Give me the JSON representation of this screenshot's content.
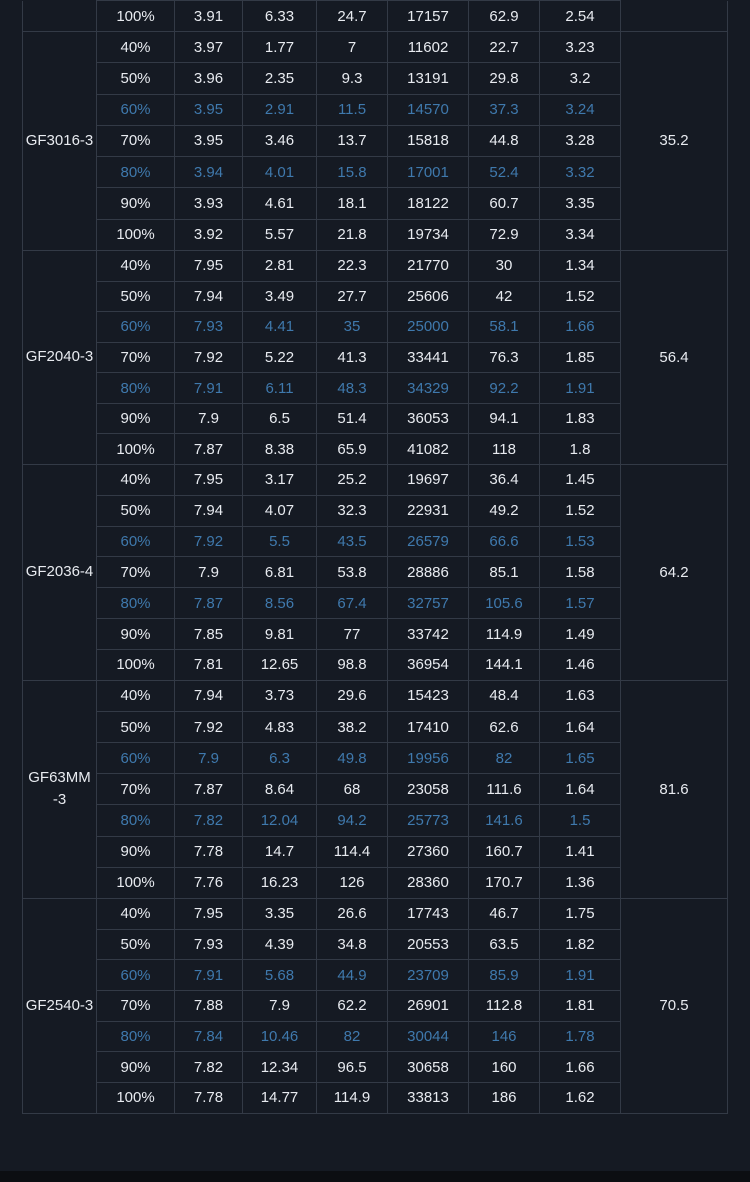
{
  "top_row": [
    "100%",
    "3.91",
    "6.33",
    "24.7",
    "17157",
    "62.9",
    "2.54"
  ],
  "groups": [
    {
      "model": "GF3016-3",
      "last": "35.2",
      "rows": [
        [
          "40%",
          "3.97",
          "1.77",
          "7",
          "11602",
          "22.7",
          "3.23"
        ],
        [
          "50%",
          "3.96",
          "2.35",
          "9.3",
          "13191",
          "29.8",
          "3.2"
        ],
        [
          "60%",
          "3.95",
          "2.91",
          "11.5",
          "14570",
          "37.3",
          "3.24"
        ],
        [
          "70%",
          "3.95",
          "3.46",
          "13.7",
          "15818",
          "44.8",
          "3.28"
        ],
        [
          "80%",
          "3.94",
          "4.01",
          "15.8",
          "17001",
          "52.4",
          "3.32"
        ],
        [
          "90%",
          "3.93",
          "4.61",
          "18.1",
          "18122",
          "60.7",
          "3.35"
        ],
        [
          "100%",
          "3.92",
          "5.57",
          "21.8",
          "19734",
          "72.9",
          "3.34"
        ]
      ]
    },
    {
      "model": "GF2040-3",
      "last": "56.4",
      "rows": [
        [
          "40%",
          "7.95",
          "2.81",
          "22.3",
          "21770",
          "30",
          "1.34"
        ],
        [
          "50%",
          "7.94",
          "3.49",
          "27.7",
          "25606",
          "42",
          "1.52"
        ],
        [
          "60%",
          "7.93",
          "4.41",
          "35",
          "25000",
          "58.1",
          "1.66"
        ],
        [
          "70%",
          "7.92",
          "5.22",
          "41.3",
          "33441",
          "76.3",
          "1.85"
        ],
        [
          "80%",
          "7.91",
          "6.11",
          "48.3",
          "34329",
          "92.2",
          "1.91"
        ],
        [
          "90%",
          "7.9",
          "6.5",
          "51.4",
          "36053",
          "94.1",
          "1.83"
        ],
        [
          "100%",
          "7.87",
          "8.38",
          "65.9",
          "41082",
          "118",
          "1.8"
        ]
      ]
    },
    {
      "model": "GF2036-4",
      "last": "64.2",
      "rows": [
        [
          "40%",
          "7.95",
          "3.17",
          "25.2",
          "19697",
          "36.4",
          "1.45"
        ],
        [
          "50%",
          "7.94",
          "4.07",
          "32.3",
          "22931",
          "49.2",
          "1.52"
        ],
        [
          "60%",
          "7.92",
          "5.5",
          "43.5",
          "26579",
          "66.6",
          "1.53"
        ],
        [
          "70%",
          "7.9",
          "6.81",
          "53.8",
          "28886",
          "85.1",
          "1.58"
        ],
        [
          "80%",
          "7.87",
          "8.56",
          "67.4",
          "32757",
          "105.6",
          "1.57"
        ],
        [
          "90%",
          "7.85",
          "9.81",
          "77",
          "33742",
          "114.9",
          "1.49"
        ],
        [
          "100%",
          "7.81",
          "12.65",
          "98.8",
          "36954",
          "144.1",
          "1.46"
        ]
      ]
    },
    {
      "model": "GF63MM -3",
      "last": "81.6",
      "rows": [
        [
          "40%",
          "7.94",
          "3.73",
          "29.6",
          "15423",
          "48.4",
          "1.63"
        ],
        [
          "50%",
          "7.92",
          "4.83",
          "38.2",
          "17410",
          "62.6",
          "1.64"
        ],
        [
          "60%",
          "7.9",
          "6.3",
          "49.8",
          "19956",
          "82",
          "1.65"
        ],
        [
          "70%",
          "7.87",
          "8.64",
          "68",
          "23058",
          "111.6",
          "1.64"
        ],
        [
          "80%",
          "7.82",
          "12.04",
          "94.2",
          "25773",
          "141.6",
          "1.5"
        ],
        [
          "90%",
          "7.78",
          "14.7",
          "114.4",
          "27360",
          "160.7",
          "1.41"
        ],
        [
          "100%",
          "7.76",
          "16.23",
          "126",
          "28360",
          "170.7",
          "1.36"
        ]
      ]
    },
    {
      "model": "GF2540-3",
      "last": "70.5",
      "rows": [
        [
          "40%",
          "7.95",
          "3.35",
          "26.6",
          "17743",
          "46.7",
          "1.75"
        ],
        [
          "50%",
          "7.93",
          "4.39",
          "34.8",
          "20553",
          "63.5",
          "1.82"
        ],
        [
          "60%",
          "7.91",
          "5.68",
          "44.9",
          "23709",
          "85.9",
          "1.91"
        ],
        [
          "70%",
          "7.88",
          "7.9",
          "62.2",
          "26901",
          "112.8",
          "1.81"
        ],
        [
          "80%",
          "7.84",
          "10.46",
          "82",
          "30044",
          "146",
          "1.78"
        ],
        [
          "90%",
          "7.82",
          "12.34",
          "96.5",
          "30658",
          "160",
          "1.66"
        ],
        [
          "100%",
          "7.78",
          "14.77",
          "114.9",
          "33813",
          "186",
          "1.62"
        ]
      ]
    }
  ],
  "colors": {
    "background": "#151a23",
    "text": "#e8ebf0",
    "highlight_text": "#3f79ad",
    "grid": "#333a46"
  }
}
